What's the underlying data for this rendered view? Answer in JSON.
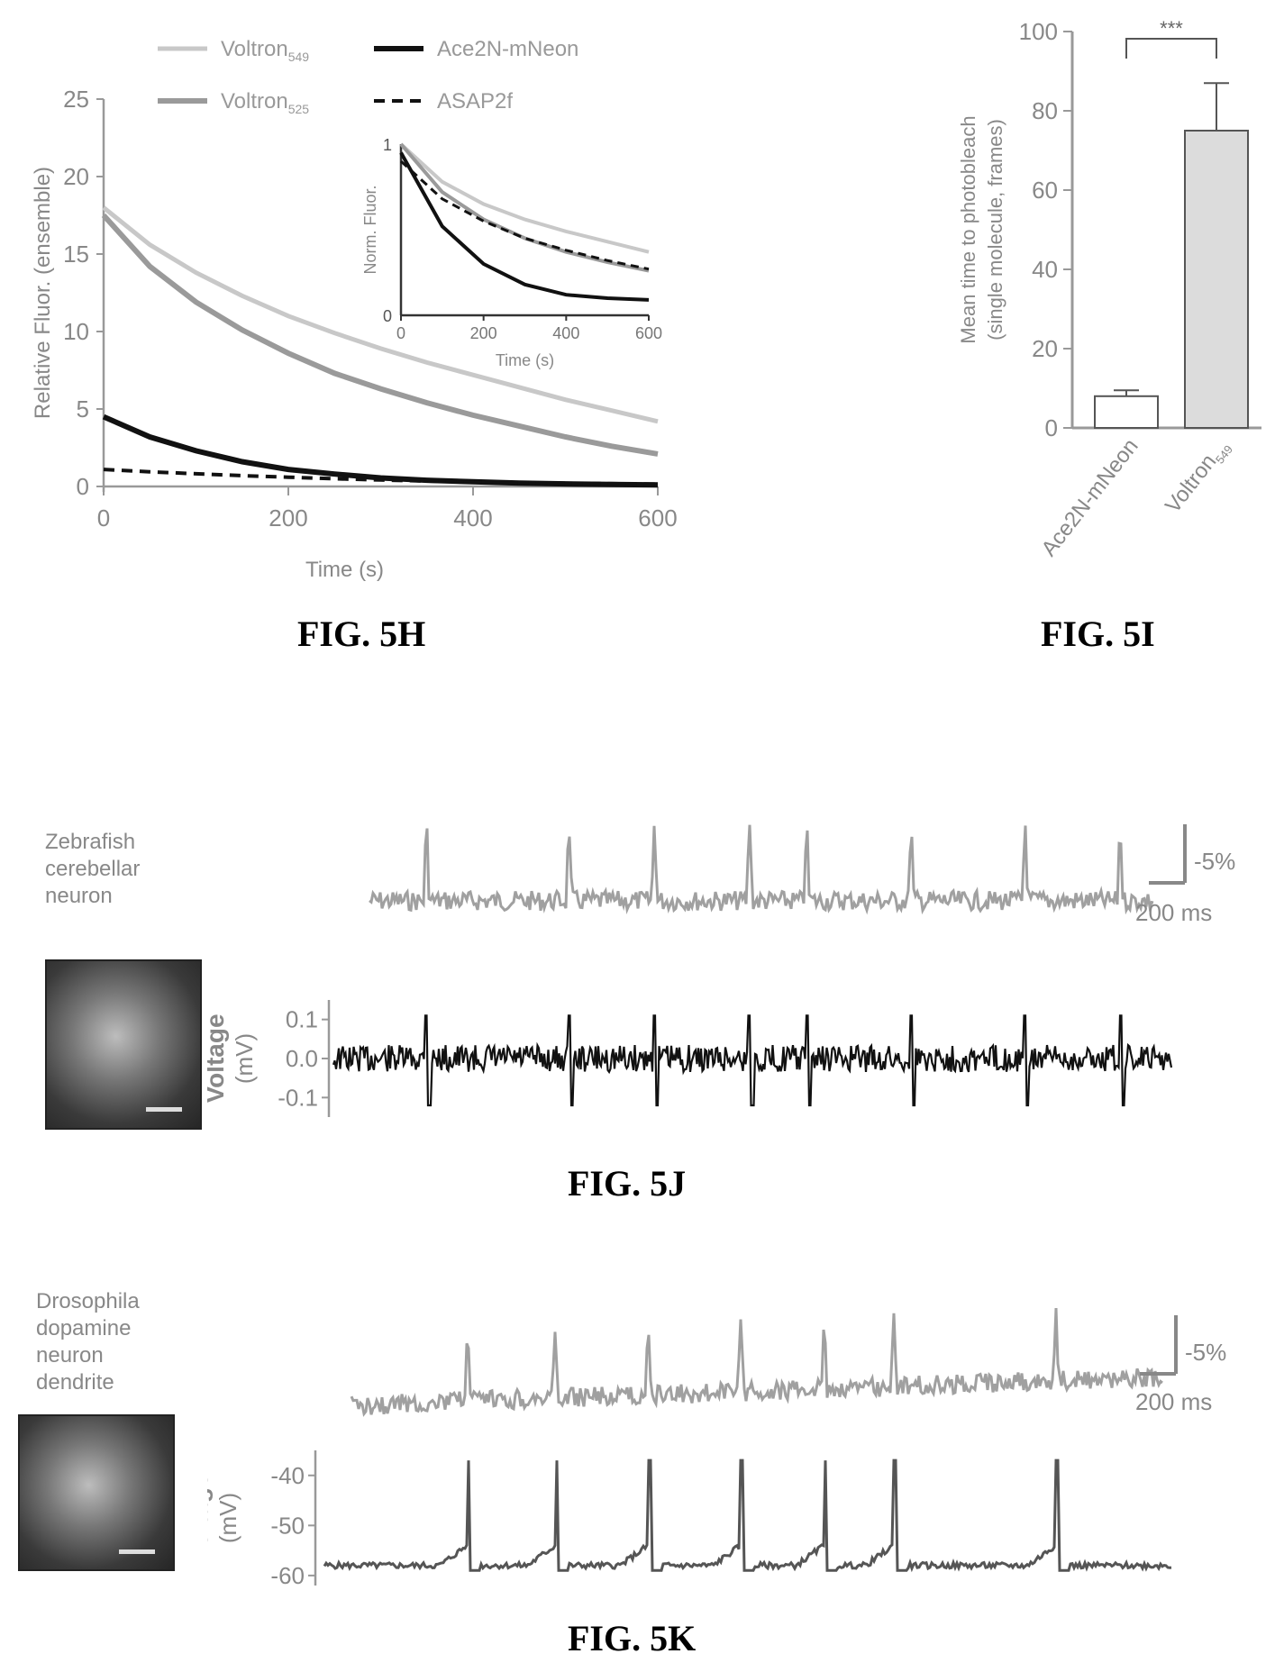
{
  "figures": {
    "h": {
      "caption": "FIG. 5H",
      "legend": [
        {
          "name": "Voltron",
          "sub": "549",
          "style": "light"
        },
        {
          "name": "Voltron",
          "sub": "525",
          "style": "mid"
        },
        {
          "name": "Ace2N-mNeon",
          "style": "solid"
        },
        {
          "name": "ASAP2f",
          "style": "dash"
        }
      ],
      "xlabel": "Time (s)",
      "ylabel": "Relative Fluor. (ensemble)",
      "inset": {
        "xlabel": "Time (s)",
        "ylabel": "Norm. Fluor.",
        "yticks": [
          "0",
          "1"
        ],
        "xticks": [
          "0",
          "200",
          "400",
          "600"
        ]
      }
    },
    "i": {
      "caption": "FIG. 5I",
      "ylabel_line1": "Mean time to photobleach",
      "ylabel_line2": "(single molecule, frames)",
      "significance": "***"
    },
    "j": {
      "caption": "FIG. 5J",
      "cell_label": [
        "Zebrafish",
        "cerebellar",
        "neuron"
      ],
      "scale_y": "-5%",
      "scale_x": "200 ms",
      "voltage_label": "Voltage",
      "voltage_unit": "(mV)",
      "yticks": [
        "0.1",
        "0.0",
        "-0.1"
      ]
    },
    "k": {
      "caption": "FIG. 5K",
      "cell_label": [
        "Drosophila",
        "dopamine",
        "neuron",
        "dendrite"
      ],
      "scale_y": "-5%",
      "scale_x": "200 ms",
      "voltage_label": "Voltage",
      "voltage_unit": "(mV)",
      "yticks": [
        "-40",
        "-50",
        "-60"
      ]
    }
  },
  "colors": {
    "light": "#c8c8c8",
    "mid": "#9a9a9a",
    "dark": "#111111",
    "trace_gray": "#a0a0a0",
    "bar_fill": "#dcdcdc"
  },
  "chart_data": [
    {
      "type": "line",
      "xlabel": "Time (s)",
      "ylabel": "Relative Fluor. (ensemble)",
      "xlim": [
        0,
        600
      ],
      "ylim": [
        0,
        25
      ],
      "xticks": [
        0,
        200,
        400,
        600
      ],
      "yticks": [
        0,
        5,
        10,
        15,
        20,
        25
      ],
      "series": [
        {
          "name": "Voltron549",
          "x": [
            0,
            50,
            100,
            150,
            200,
            250,
            300,
            350,
            400,
            450,
            500,
            550,
            600
          ],
          "values": [
            18,
            15.6,
            13.8,
            12.3,
            11,
            9.9,
            8.9,
            8,
            7.2,
            6.4,
            5.6,
            4.9,
            4.2
          ]
        },
        {
          "name": "Voltron525",
          "x": [
            0,
            50,
            100,
            150,
            200,
            250,
            300,
            350,
            400,
            450,
            500,
            550,
            600
          ],
          "values": [
            17.5,
            14.2,
            11.9,
            10.1,
            8.6,
            7.3,
            6.3,
            5.4,
            4.6,
            3.9,
            3.2,
            2.6,
            2.1
          ]
        },
        {
          "name": "Ace2N-mNeon",
          "x": [
            0,
            50,
            100,
            150,
            200,
            250,
            300,
            350,
            400,
            450,
            500,
            550,
            600
          ],
          "values": [
            4.5,
            3.2,
            2.3,
            1.6,
            1.1,
            0.8,
            0.55,
            0.4,
            0.3,
            0.22,
            0.17,
            0.13,
            0.1
          ]
        },
        {
          "name": "ASAP2f",
          "x": [
            0,
            50,
            100,
            150,
            200,
            250,
            300,
            350,
            400,
            450,
            500,
            550,
            600
          ],
          "values": [
            1.1,
            0.95,
            0.82,
            0.7,
            0.6,
            0.5,
            0.42,
            0.35,
            0.3,
            0.25,
            0.21,
            0.18,
            0.15
          ]
        }
      ],
      "legend": "top-left",
      "inset": {
        "xlim": [
          0,
          600
        ],
        "ylim": [
          0,
          1
        ],
        "series": [
          {
            "name": "Voltron549",
            "x": [
              0,
              100,
              200,
              300,
              400,
              500,
              600
            ],
            "values": [
              1,
              0.78,
              0.65,
              0.56,
              0.49,
              0.43,
              0.37
            ]
          },
          {
            "name": "Voltron525",
            "x": [
              0,
              100,
              200,
              300,
              400,
              500,
              600
            ],
            "values": [
              1,
              0.72,
              0.56,
              0.45,
              0.37,
              0.31,
              0.26
            ]
          },
          {
            "name": "Ace2N-mNeon",
            "x": [
              0,
              100,
              200,
              300,
              400,
              500,
              600
            ],
            "values": [
              0.95,
              0.52,
              0.3,
              0.18,
              0.12,
              0.1,
              0.09
            ]
          },
          {
            "name": "ASAP2f",
            "x": [
              0,
              100,
              200,
              300,
              400,
              500,
              600
            ],
            "values": [
              0.9,
              0.68,
              0.55,
              0.45,
              0.38,
              0.32,
              0.27
            ]
          }
        ]
      }
    },
    {
      "type": "bar",
      "categories": [
        "Ace2N-mNeon",
        "Voltron549"
      ],
      "category_subs": [
        "",
        "549"
      ],
      "values": [
        8,
        75
      ],
      "errors": [
        1.5,
        12
      ],
      "ylabel": "Mean time to photobleach (single molecule, frames)",
      "ylim": [
        0,
        100
      ],
      "yticks": [
        0,
        20,
        40,
        60,
        80,
        100
      ]
    },
    {
      "type": "line",
      "ylabel": "Voltage (mV)",
      "ylim": [
        -0.15,
        0.15
      ],
      "yticks": [
        0.1,
        0.0,
        -0.1
      ],
      "spike_times_ms": [
        120,
        420,
        600,
        800,
        920,
        1140,
        1380,
        1580
      ],
      "fluor_scale": "-5%",
      "time_scale": "200 ms"
    },
    {
      "type": "line",
      "ylabel": "Voltage (mV)",
      "ylim": [
        -62,
        -35
      ],
      "yticks": [
        -40,
        -50,
        -60
      ],
      "spike_times_ms": [
        250,
        440,
        640,
        840,
        1020,
        1170,
        1520
      ],
      "baseline_mV": -58,
      "spike_peak_mV": -37,
      "fluor_scale": "-5%",
      "time_scale": "200 ms"
    }
  ]
}
